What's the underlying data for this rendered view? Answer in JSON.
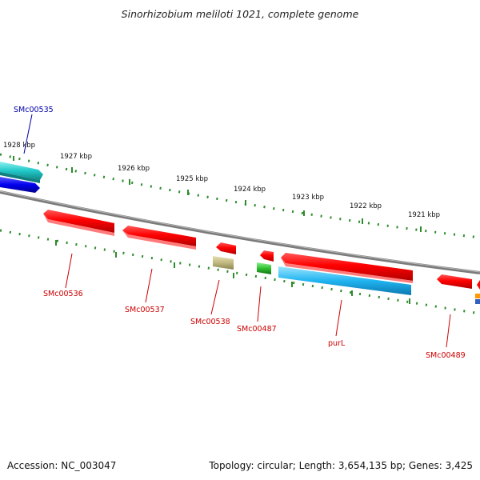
{
  "title": "Sinorhizobium meliloti 1021, complete genome",
  "footer": {
    "accession": "Accession: NC_003047",
    "summary": "Topology: circular; Length: 3,654,135 bp; Genes: 3,425"
  },
  "ruler_labels": [
    "1928 kbp",
    "1927 kbp",
    "1926 kbp",
    "1925 kbp",
    "1924 kbp",
    "1923 kbp",
    "1922 kbp",
    "1921 kbp"
  ],
  "gene_labels": {
    "SMc00535": "SMc00535",
    "SMc00536": "SMc00536",
    "SMc00537": "SMc00537",
    "SMc00538": "SMc00538",
    "SMc00487": "SMc00487",
    "purL": "purL",
    "SMc00489": "SMc00489"
  },
  "colors": {
    "tick": "#2e8b2e",
    "backbone": "#808080",
    "cds_red": "#ff0000",
    "cds_cyan": "#33d0d0",
    "cds_blue": "#1010e0",
    "cds_skyblue": "#30b8f0",
    "cds_olive": "#c8c080",
    "cds_green": "#30c030",
    "label_blue": "#0000aa",
    "label_red": "#cc0000"
  }
}
